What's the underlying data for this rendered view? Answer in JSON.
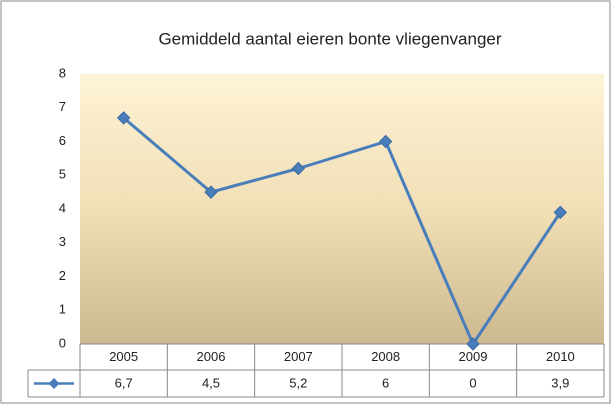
{
  "chart_data": {
    "type": "line",
    "title": "Gemiddeld aantal eieren bonte vliegenvanger",
    "categories": [
      "2005",
      "2006",
      "2007",
      "2008",
      "2009",
      "2010"
    ],
    "values": [
      6.7,
      4.5,
      5.2,
      6,
      0,
      3.9
    ],
    "value_labels": [
      "6,7",
      "4,5",
      "5,2",
      "6",
      "0",
      "3,9"
    ],
    "color": "#4a7ebb",
    "ylim": [
      0,
      8
    ],
    "yticks": [
      0,
      1,
      2,
      3,
      4,
      5,
      6,
      7,
      8
    ],
    "grid": false
  }
}
